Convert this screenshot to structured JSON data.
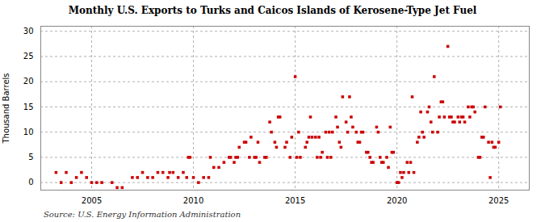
{
  "chart_data": {
    "type": "scatter",
    "title": "Monthly U.S. Exports to Turks and Caicos Islands of Kerosene-Type Jet Fuel",
    "ylabel": "Thousand Barrels",
    "source": "Source: U.S. Energy Information Administration",
    "color": "#cc0000",
    "marker": "square",
    "grid": true,
    "xlim": [
      2002.5,
      2026.5
    ],
    "ylim": [
      -1.5,
      31
    ],
    "xticks": [
      2005,
      2010,
      2015,
      2020,
      2025
    ],
    "yticks": [
      0,
      5,
      10,
      15,
      20,
      25,
      30
    ],
    "x": [
      2003.25,
      2003.5,
      2003.75,
      2004.0,
      2004.25,
      2004.5,
      2004.75,
      2005.0,
      2005.25,
      2005.5,
      2006.0,
      2006.25,
      2006.5,
      2007.0,
      2007.25,
      2007.5,
      2007.75,
      2008.0,
      2008.25,
      2008.5,
      2008.75,
      2008.83,
      2009.0,
      2009.25,
      2009.5,
      2009.67,
      2009.75,
      2009.83,
      2010.0,
      2010.25,
      2010.5,
      2010.75,
      2010.83,
      2011.0,
      2011.25,
      2011.5,
      2011.75,
      2011.83,
      2012.0,
      2012.08,
      2012.17,
      2012.25,
      2012.5,
      2012.58,
      2012.75,
      2012.83,
      2013.0,
      2013.08,
      2013.17,
      2013.25,
      2013.5,
      2013.58,
      2013.75,
      2013.83,
      2014.0,
      2014.08,
      2014.17,
      2014.25,
      2014.5,
      2014.58,
      2014.75,
      2014.83,
      2015.0,
      2015.08,
      2015.17,
      2015.25,
      2015.5,
      2015.58,
      2015.67,
      2015.75,
      2015.83,
      2016.0,
      2016.08,
      2016.17,
      2016.25,
      2016.33,
      2016.5,
      2016.58,
      2016.67,
      2016.75,
      2016.83,
      2017.0,
      2017.08,
      2017.17,
      2017.25,
      2017.33,
      2017.5,
      2017.58,
      2017.67,
      2017.75,
      2017.83,
      2018.0,
      2018.08,
      2018.17,
      2018.25,
      2018.33,
      2018.5,
      2018.58,
      2018.67,
      2018.75,
      2018.83,
      2019.0,
      2019.08,
      2019.17,
      2019.25,
      2019.33,
      2019.5,
      2019.58,
      2019.67,
      2019.75,
      2019.83,
      2020.0,
      2020.08,
      2020.17,
      2020.25,
      2020.33,
      2020.5,
      2020.58,
      2020.67,
      2020.75,
      2020.83,
      2021.0,
      2021.08,
      2021.17,
      2021.25,
      2021.33,
      2021.5,
      2021.58,
      2021.67,
      2021.75,
      2021.83,
      2022.0,
      2022.08,
      2022.17,
      2022.25,
      2022.33,
      2022.5,
      2022.58,
      2022.67,
      2022.75,
      2022.83,
      2023.0,
      2023.08,
      2023.17,
      2023.25,
      2023.33,
      2023.5,
      2023.58,
      2023.67,
      2023.75,
      2023.83,
      2024.0,
      2024.08,
      2024.17,
      2024.25,
      2024.33,
      2024.5,
      2024.58,
      2024.67,
      2024.75,
      2024.83,
      2025.0,
      2025.08
    ],
    "values": [
      2,
      0,
      2,
      0,
      1,
      2,
      1,
      0,
      0,
      0,
      0,
      -1,
      -1,
      1,
      1,
      2,
      1,
      1,
      2,
      2,
      1,
      2,
      2,
      1,
      2,
      1,
      5,
      5,
      1,
      0,
      1,
      1,
      5,
      3,
      3,
      4,
      5,
      5,
      4,
      5,
      5,
      7,
      8,
      8,
      5,
      9,
      5,
      5,
      8,
      4,
      5,
      5,
      12,
      10,
      8,
      7,
      13,
      13,
      7,
      8,
      5,
      9,
      21,
      5,
      10,
      5,
      7,
      8,
      9,
      13,
      9,
      9,
      5,
      9,
      5,
      6,
      10,
      5,
      10,
      5,
      10,
      13,
      11,
      8,
      7,
      17,
      12,
      10,
      17,
      13,
      11,
      10,
      8,
      8,
      10,
      10,
      6,
      6,
      5,
      4,
      4,
      11,
      10,
      5,
      4,
      4,
      5,
      3,
      11,
      6,
      6,
      0,
      0,
      2,
      1,
      2,
      4,
      2,
      4,
      17,
      2,
      8,
      9,
      14,
      10,
      9,
      14,
      15,
      12,
      10,
      21,
      10,
      13,
      16,
      16,
      13,
      27,
      13,
      13,
      12,
      12,
      13,
      12,
      13,
      13,
      12,
      15,
      13,
      15,
      15,
      14,
      5,
      5,
      9,
      9,
      15,
      8,
      1,
      8,
      7,
      7,
      8,
      15
    ]
  }
}
